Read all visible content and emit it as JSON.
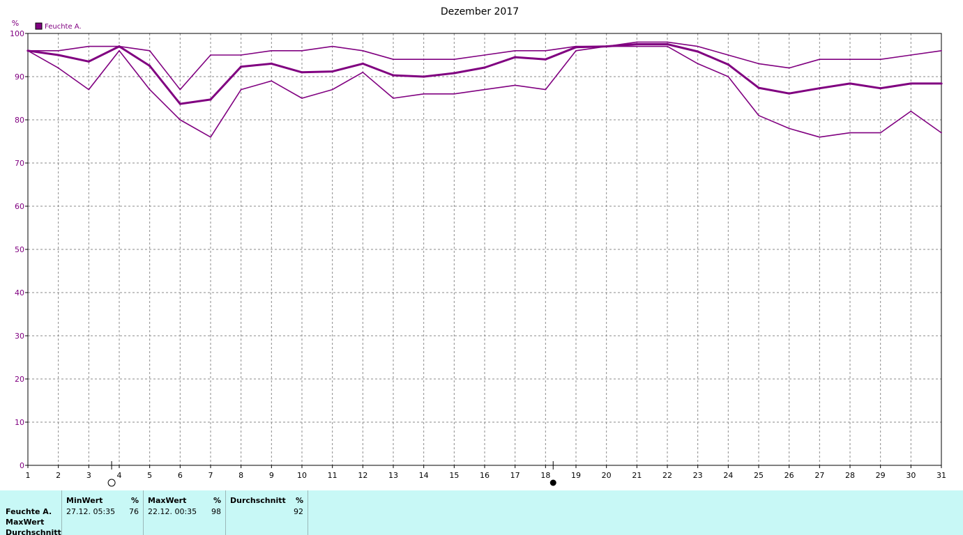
{
  "chart_data": {
    "type": "line",
    "title": "Dezember 2017",
    "ylabel": "%",
    "xlabel": "",
    "xlim": [
      1,
      31
    ],
    "ylim": [
      0,
      100
    ],
    "x_ticks": [
      1,
      2,
      3,
      4,
      5,
      6,
      7,
      8,
      9,
      10,
      11,
      12,
      13,
      14,
      15,
      16,
      17,
      18,
      19,
      20,
      21,
      22,
      23,
      24,
      25,
      26,
      27,
      28,
      29,
      30,
      31
    ],
    "y_ticks": [
      0,
      10,
      20,
      30,
      40,
      50,
      60,
      70,
      80,
      90,
      100
    ],
    "grid": true,
    "legend": {
      "position": "top-left",
      "label": "Feuchte A."
    },
    "color": "#800080",
    "series": [
      {
        "role": "max",
        "values": [
          96,
          96,
          97,
          97,
          96,
          87,
          95,
          95,
          96,
          96,
          97,
          96,
          94,
          94,
          94,
          95,
          96,
          96,
          97,
          97,
          98,
          98,
          97,
          95,
          93,
          92,
          94,
          94,
          94,
          95,
          96
        ]
      },
      {
        "role": "avg",
        "values": [
          96,
          95,
          93.5,
          97,
          92.5,
          83.7,
          84.7,
          92.3,
          93,
          91,
          91.2,
          93,
          90.3,
          90,
          90.8,
          92.1,
          94.5,
          94,
          96.8,
          97,
          97.5,
          97.5,
          95.8,
          92.8,
          87.4,
          86.1,
          87.3,
          88.4,
          87.3,
          88.4,
          88.4
        ]
      },
      {
        "role": "min",
        "values": [
          96,
          92,
          87,
          96,
          87,
          80,
          76,
          87,
          89,
          85,
          87,
          91,
          85,
          86,
          86,
          87,
          88,
          87,
          96,
          97,
          97,
          97,
          93,
          90,
          81,
          78,
          76,
          77,
          77,
          82,
          77
        ]
      }
    ],
    "moon_markers": [
      {
        "x": 3.75,
        "phase": "full"
      },
      {
        "x": 18.25,
        "phase": "new"
      }
    ]
  },
  "stats": {
    "row_labels": [
      "Feuchte A.",
      "MaxWert",
      "Durchschnitt"
    ],
    "columns": [
      {
        "header": "MinWert",
        "unit": "%",
        "when": "27.12.  05:35",
        "value": "76"
      },
      {
        "header": "MaxWert",
        "unit": "%",
        "when": "22.12.  00:35",
        "value": "98"
      },
      {
        "header": "Durchschnitt",
        "unit": "%",
        "when": "",
        "value": "92"
      }
    ]
  }
}
